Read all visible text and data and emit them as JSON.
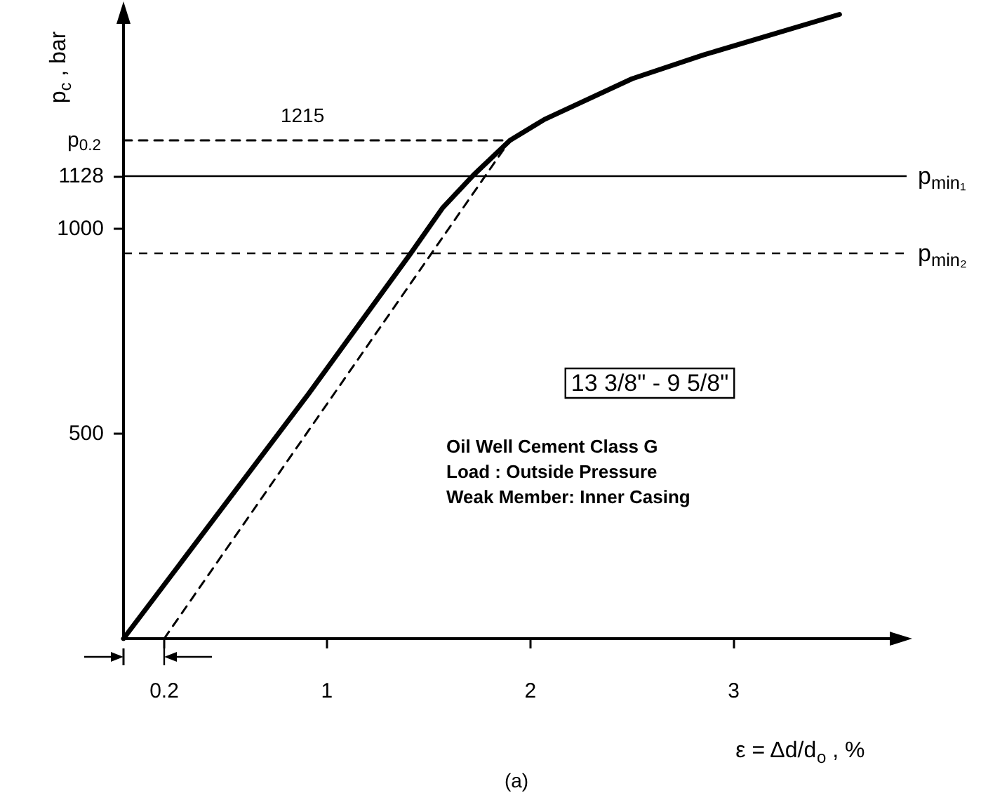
{
  "chart_data": {
    "type": "line",
    "ylabel": "p$_{c}$ , bar",
    "xlabel": "ε = Δd/d$_{o}$ , %",
    "xlim": [
      0,
      3.85
    ],
    "ylim": [
      0,
      1540
    ],
    "xticks": [
      0.2,
      1,
      2,
      3
    ],
    "yticks": [
      500,
      1000,
      1128
    ],
    "grid": false,
    "marker": "none",
    "series": [
      {
        "color": "#000000",
        "line_style": "solid",
        "x": [
          0,
          0.91,
          1.41,
          1.57,
          1.72,
          1.9,
          2.07,
          2.5,
          2.85,
          3.52
        ],
        "values": [
          0,
          597,
          938,
          1051,
          1130,
          1215,
          1266,
          1365,
          1423,
          1522
        ]
      },
      {
        "color": "#000000",
        "line_style": "dashed",
        "x": [
          0.2,
          1.9
        ],
        "values": [
          0,
          1215
        ]
      },
      {
        "color": "#000000",
        "line_style": "dashed",
        "x": [
          0,
          1.9
        ],
        "values": [
          1215,
          1215
        ]
      }
    ],
    "ref_lines": [
      {
        "axis": "y",
        "value": 1128,
        "label": "p$_{min₁}$",
        "line_style": "solid",
        "color": "#000000"
      },
      {
        "axis": "y",
        "value": 940,
        "label": "p$_{min₂}$",
        "line_style": "dashed",
        "color": "#000000"
      }
    ],
    "annotations": [
      {
        "text": "1215",
        "x": 0.88,
        "y": 1215
      },
      "13 3/8\" - 9 5/8\"",
      "Oil Well Cement Class G",
      "Load : Outside Pressure",
      "Weak Member: Inner Casing",
      "(a)",
      "p$_{0.2}$"
    ]
  }
}
